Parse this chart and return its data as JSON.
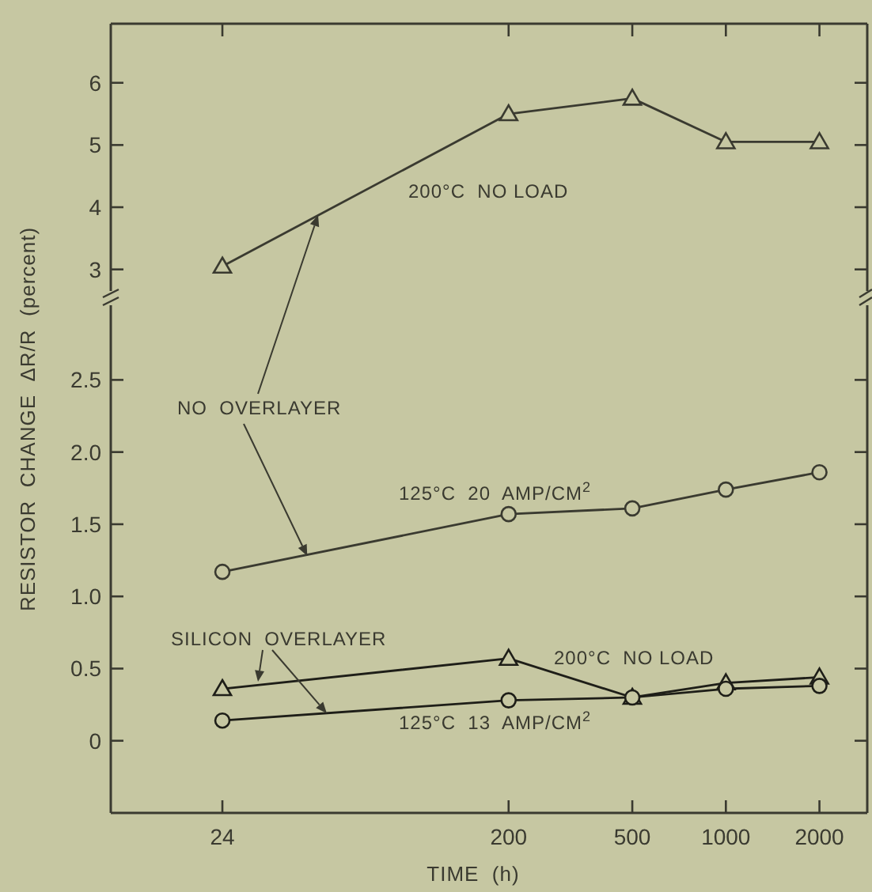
{
  "chart_data": [
    {
      "type": "line",
      "xlim": [
        10.5,
        2850
      ],
      "xticks": [
        24,
        200,
        500,
        1000,
        2000
      ],
      "ylim": [
        2.5,
        6.95
      ],
      "yticks": [
        3,
        4,
        5,
        6
      ],
      "tick_labels": "y",
      "log": "x",
      "marker": "triangle",
      "line_style": "solid",
      "series": [
        {
          "name": "200°C  NO LOAD",
          "color": "#3a3a30",
          "x": [
            24,
            200,
            500,
            1000,
            2000
          ],
          "values": [
            3.05,
            5.5,
            5.75,
            5.05,
            5.05
          ]
        }
      ]
    },
    {
      "type": "line",
      "xlim": [
        10.5,
        2850
      ],
      "xticks": [
        24,
        200,
        500,
        1000,
        2000
      ],
      "ylim": [
        -0.5,
        3.05
      ],
      "yticks": [
        0,
        0.5,
        {
          "value": 1,
          "label": "1.0"
        },
        {
          "value": 1.5,
          "label": "1.5"
        },
        {
          "value": 2,
          "label": "2.0"
        },
        {
          "value": 2.5,
          "label": "2.5"
        }
      ],
      "log": "x",
      "line_style": "solid",
      "xlabel": "TIME  (h)",
      "ylabel": "RESISTOR  CHANGE  ΔR/R  (percent)",
      "annotations": [
        {
          "text": "NO  OVERLAYER",
          "x": 45,
          "y": 1.28
        },
        {
          "text": "SILICON  OVERLAYER",
          "x": 52,
          "y": 0.19
        }
      ],
      "series": [
        {
          "name": "125°C  20  AMP/CM$^{2}$",
          "color": "#3a3a30",
          "marker": "circle",
          "x": [
            24,
            200,
            500,
            1000,
            2000
          ],
          "values": [
            1.17,
            1.57,
            1.61,
            1.74,
            1.86
          ]
        },
        {
          "name": "200°C  NO LOAD",
          "color": "#1e1e18",
          "marker": "triangle",
          "x": [
            24,
            200,
            500,
            1000,
            2000
          ],
          "values": [
            0.36,
            0.57,
            0.3,
            0.4,
            0.44
          ]
        },
        {
          "name": "125°C  13  AMP/CM$^{2}$",
          "color": "#1e1e18",
          "marker": "circle",
          "x": [
            24,
            200,
            500,
            1000,
            2000
          ],
          "values": [
            0.14,
            0.28,
            0.3,
            0.36,
            0.38
          ]
        }
      ]
    }
  ]
}
